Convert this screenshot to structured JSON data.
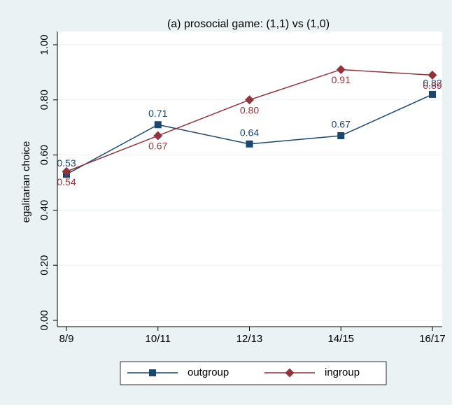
{
  "chart_data": {
    "type": "line",
    "title": "(a) prosocial game: (1,1) vs (1,0)",
    "y_label": "egalitarian choice",
    "categories": [
      "8/9",
      "10/11",
      "12/13",
      "14/15",
      "16/17"
    ],
    "series": [
      {
        "name": "outgroup",
        "color": "#1a476f",
        "marker": "square",
        "label_position": "above",
        "values": [
          0.53,
          0.71,
          0.64,
          0.67,
          0.82
        ],
        "value_labels": [
          "0.53",
          "0.71",
          "0.64",
          "0.67",
          "0.82"
        ]
      },
      {
        "name": "ingroup",
        "color": "#90353b",
        "marker": "diamond",
        "label_position": "below",
        "values": [
          0.54,
          0.67,
          0.8,
          0.91,
          0.89
        ],
        "value_labels": [
          "0.54",
          "0.67",
          "0.80",
          "0.91",
          "0.89"
        ]
      }
    ],
    "ylim": [
      0,
      1
    ],
    "yticks": [
      {
        "value": 0,
        "label": "0.00"
      },
      {
        "value": 0.2,
        "label": "0.20"
      },
      {
        "value": 0.4,
        "label": "0.40"
      },
      {
        "value": 0.6,
        "label": "0.60"
      },
      {
        "value": 0.8,
        "label": "0.80"
      },
      {
        "value": 1,
        "label": "1.00"
      }
    ],
    "grid": true
  }
}
